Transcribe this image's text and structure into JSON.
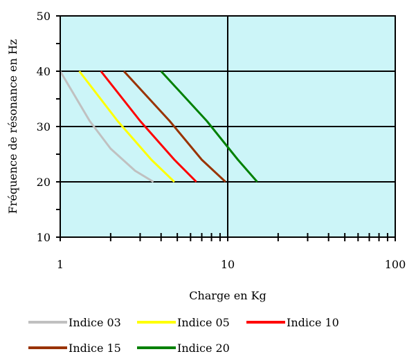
{
  "chart_data": {
    "type": "line",
    "title": "",
    "xlabel": "Charge en Kg",
    "ylabel": "Fréquence de résonance en Hz",
    "x_scale": "log",
    "xlim": [
      1,
      100
    ],
    "ylim": [
      10,
      50
    ],
    "x_ticks": [
      1,
      10,
      100
    ],
    "x_tick_labels": [
      "1",
      "10",
      "100"
    ],
    "y_ticks": [
      10,
      20,
      30,
      40,
      50
    ],
    "y_tick_labels": [
      "10",
      "20",
      "30",
      "40",
      "50"
    ],
    "grid": true,
    "plot_background": "#ccf5f8",
    "legend_position": "bottom",
    "series": [
      {
        "name": "Indice 03",
        "color": "#c0c0c0",
        "points": [
          [
            1.0,
            40
          ],
          [
            1.5,
            31
          ],
          [
            2.0,
            26
          ],
          [
            2.8,
            22
          ],
          [
            3.6,
            20
          ]
        ]
      },
      {
        "name": "Indice 05",
        "color": "#ffff00",
        "points": [
          [
            1.3,
            40
          ],
          [
            2.2,
            31
          ],
          [
            3.5,
            24
          ],
          [
            4.8,
            20
          ]
        ]
      },
      {
        "name": "Indice 10",
        "color": "#ff0000",
        "points": [
          [
            1.75,
            40
          ],
          [
            3.0,
            31
          ],
          [
            4.8,
            24
          ],
          [
            6.5,
            20
          ]
        ]
      },
      {
        "name": "Indice 15",
        "color": "#993300",
        "points": [
          [
            2.4,
            40
          ],
          [
            4.5,
            31
          ],
          [
            7.0,
            24
          ],
          [
            9.7,
            20
          ]
        ]
      },
      {
        "name": "Indice 20",
        "color": "#008000",
        "points": [
          [
            4.0,
            40
          ],
          [
            7.5,
            31
          ],
          [
            11.5,
            24
          ],
          [
            15.0,
            20
          ]
        ]
      }
    ]
  }
}
